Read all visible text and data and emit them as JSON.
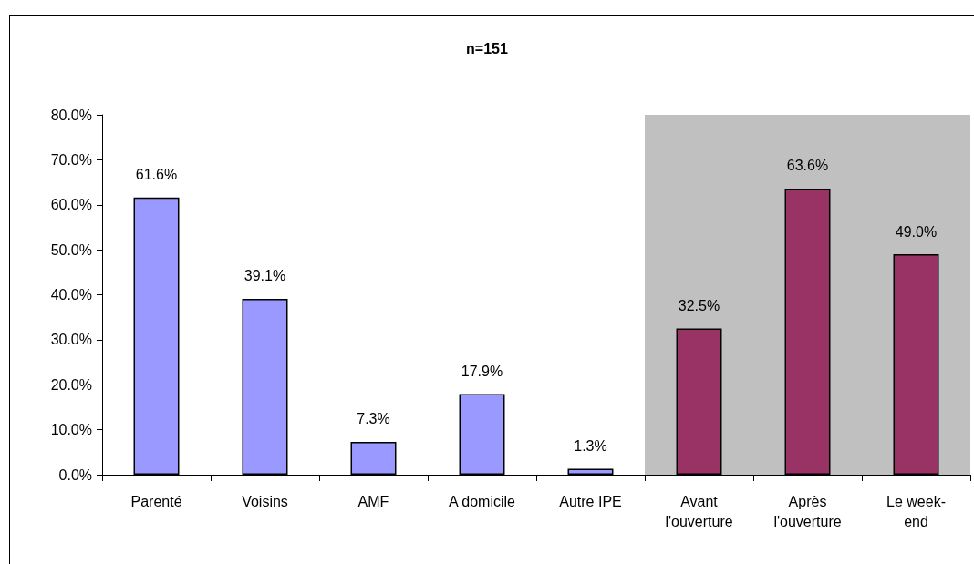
{
  "chart_data": {
    "type": "bar",
    "title": "n=151",
    "categories": [
      "Parenté",
      "Voisins",
      "AMF",
      "A domicile",
      "Autre IPE",
      "Avant\nl'ouverture",
      "Après\nl'ouverture",
      "Le week-\nend"
    ],
    "values": [
      61.6,
      39.1,
      7.3,
      17.9,
      1.3,
      32.5,
      63.6,
      49.0
    ],
    "colors": [
      "#9999ff",
      "#9999ff",
      "#9999ff",
      "#9999ff",
      "#9999ff",
      "#993366",
      "#993366",
      "#993366"
    ],
    "value_labels": [
      "61.6%",
      "39.1%",
      "7.3%",
      "17.9%",
      "1.3%",
      "32.5%",
      "63.6%",
      "49.0%"
    ],
    "ylim": [
      0,
      80
    ],
    "yticks": [
      {
        "value": 0,
        "label": "0.0%"
      },
      {
        "value": 10,
        "label": "10.0%"
      },
      {
        "value": 20,
        "label": "20.0%"
      },
      {
        "value": 30,
        "label": "30.0%"
      },
      {
        "value": 40,
        "label": "40.0%"
      },
      {
        "value": 50,
        "label": "50.0%"
      },
      {
        "value": 60,
        "label": "60.0%"
      },
      {
        "value": 70,
        "label": "70.0%"
      },
      {
        "value": 80,
        "label": "80.0%"
      }
    ],
    "bands": [
      {
        "axis": "x",
        "from": "Avant\nl'ouverture",
        "to": "Le week-\nend",
        "color": "#c0c0c0"
      }
    ]
  }
}
